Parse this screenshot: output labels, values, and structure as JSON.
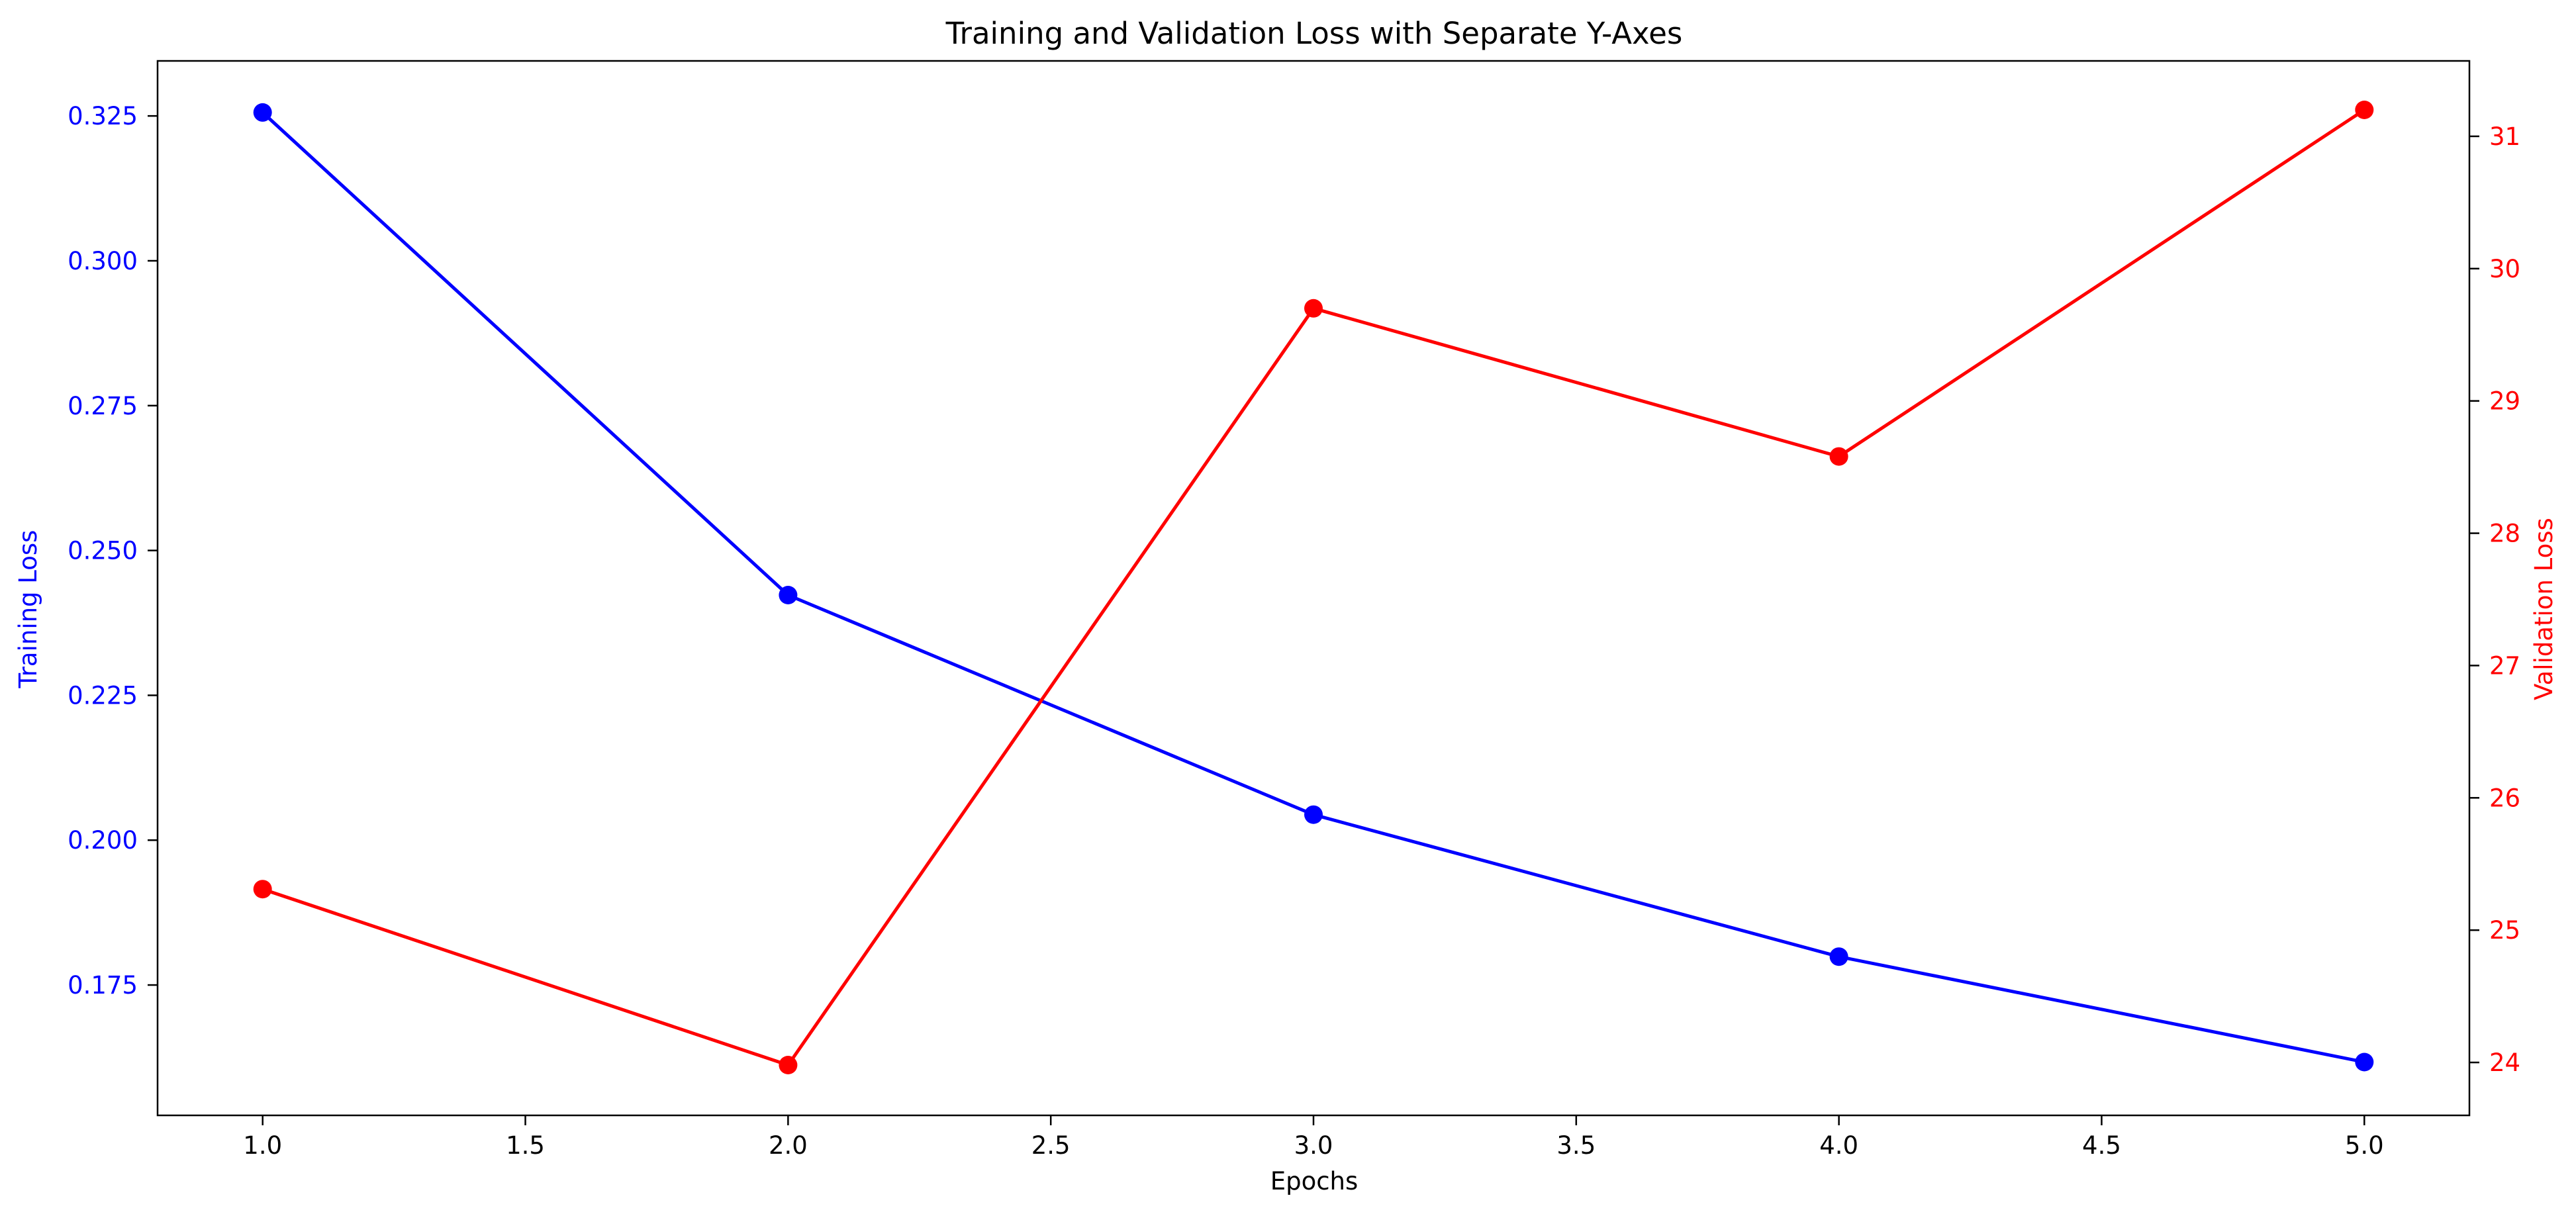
{
  "chart_data": {
    "type": "line",
    "title": "Training and Validation Loss with Separate Y-Axes",
    "xlabel": "Epochs",
    "x": [
      1,
      2,
      3,
      4,
      5
    ],
    "xlim": [
      0.8,
      5.2
    ],
    "xticks": [
      "1.0",
      "1.5",
      "2.0",
      "2.5",
      "3.0",
      "3.5",
      "4.0",
      "4.5",
      "5.0"
    ],
    "xtick_values": [
      1.0,
      1.5,
      2.0,
      2.5,
      3.0,
      3.5,
      4.0,
      4.5,
      5.0
    ],
    "grid": false,
    "left_axis": {
      "label": "Training Loss",
      "color": "#0000ff",
      "ylim": [
        0.1525,
        0.3345
      ],
      "ticks": [
        "0.175",
        "0.200",
        "0.225",
        "0.250",
        "0.275",
        "0.300",
        "0.325"
      ],
      "tick_values": [
        0.175,
        0.2,
        0.225,
        0.25,
        0.275,
        0.3,
        0.325
      ]
    },
    "right_axis": {
      "label": "Validation Loss",
      "color": "#ff0000",
      "ylim": [
        23.6,
        31.57
      ],
      "ticks": [
        "24",
        "25",
        "26",
        "27",
        "28",
        "29",
        "30",
        "31"
      ],
      "tick_values": [
        24,
        25,
        26,
        27,
        28,
        29,
        30,
        31
      ]
    },
    "series": [
      {
        "axis": "left",
        "color": "#0000ff",
        "marker": "circle",
        "values": [
          0.3256,
          0.2423,
          0.2044,
          0.1799,
          0.1617
        ]
      },
      {
        "axis": "right",
        "color": "#ff0000",
        "marker": "circle",
        "values": [
          25.31,
          23.98,
          29.7,
          28.58,
          31.2
        ]
      }
    ]
  }
}
